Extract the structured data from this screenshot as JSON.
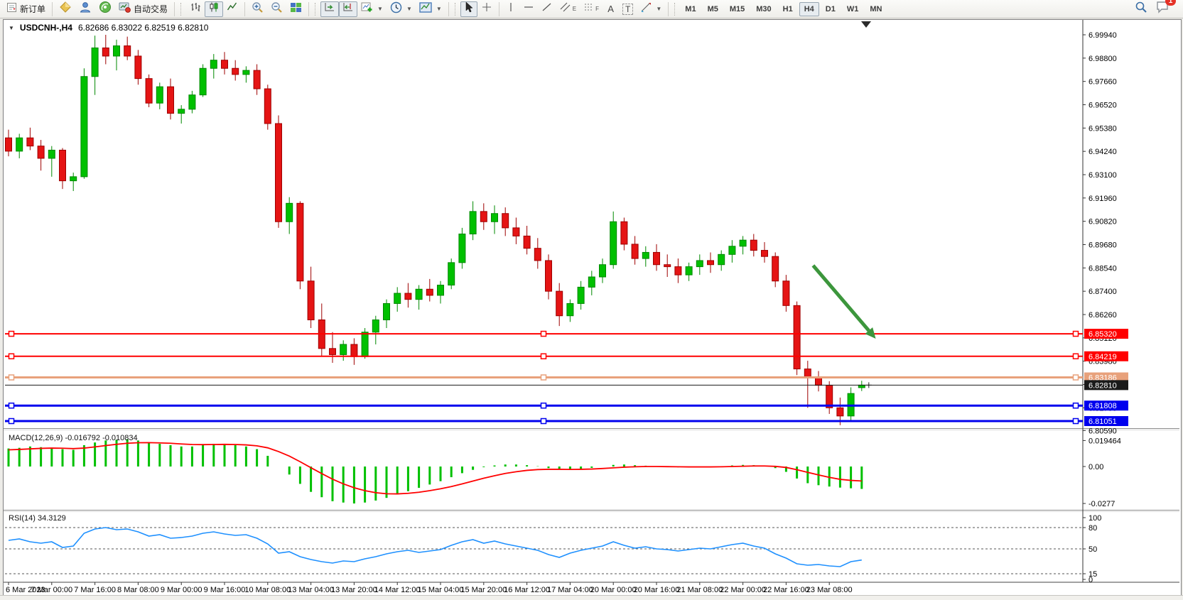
{
  "toolbar": {
    "new_order_label": "新订单",
    "autotrading_label": "自动交易",
    "timeframes": [
      "M1",
      "M5",
      "M15",
      "M30",
      "H1",
      "H4",
      "D1",
      "W1",
      "MN"
    ],
    "active_timeframe": "H4",
    "notification_badge": "1"
  },
  "icons": {
    "collapse": "▼",
    "dropdown": "▼",
    "crosshair": "+",
    "vertical_line": "|",
    "horizontal_line": "—",
    "trendline": "/",
    "channel_sub": "E",
    "fibo_sub": "F",
    "text_tool": "A",
    "label_tool": "T"
  },
  "chart": {
    "symbol_period": "USDCNH-,H4",
    "ohlc_text": "6.82686 6.83022 6.82519 6.82810",
    "macd_label": "MACD(12,26,9) -0.016792 -0.010834",
    "rsi_label": "RSI(14) 34.3129"
  },
  "axes": {
    "price_ticks": [
      "6.99940",
      "6.98800",
      "6.97660",
      "6.96520",
      "6.95380",
      "6.94240",
      "6.93100",
      "6.91960",
      "6.90820",
      "6.89680",
      "6.88540",
      "6.87400",
      "6.86260",
      "6.85120",
      "6.83980",
      "6.82840",
      "6.81700",
      "6.80590"
    ],
    "macd_ticks": [
      "0.019464",
      "0.00",
      "-0.0277"
    ],
    "rsi_ticks": [
      "100",
      "80",
      "50",
      "15",
      "0"
    ],
    "rsi_levels": [
      80,
      50,
      15
    ],
    "time_labels": [
      "6 Mar 2023",
      "7 Mar 00:00",
      "7 Mar 16:00",
      "8 Mar 08:00",
      "9 Mar 00:00",
      "9 Mar 16:00",
      "10 Mar 08:00",
      "13 Mar 04:00",
      "13 Mar 20:00",
      "14 Mar 12:00",
      "15 Mar 04:00",
      "15 Mar 20:00",
      "16 Mar 12:00",
      "17 Mar 04:00",
      "20 Mar 00:00",
      "20 Mar 16:00",
      "21 Mar 08:00",
      "22 Mar 00:00",
      "22 Mar 16:00",
      "23 Mar 08:00"
    ],
    "label_every_n_candles": 4
  },
  "levels": [
    {
      "price": 6.8532,
      "label": "6.85320",
      "color": "#FF0000",
      "line_width": 2,
      "selected": true
    },
    {
      "price": 6.84219,
      "label": "6.84219",
      "color": "#FF0000",
      "line_width": 2,
      "selected": true
    },
    {
      "price": 6.83186,
      "label": "6.83186",
      "color": "#E8A17B",
      "line_width": 3,
      "selected": true
    },
    {
      "price": 6.8281,
      "label": "6.82810",
      "color": "#1A1A1A",
      "line_width": 1,
      "selected": false
    },
    {
      "price": 6.81808,
      "label": "6.81808",
      "color": "#0000EE",
      "line_width": 3,
      "selected": true
    },
    {
      "price": 6.81051,
      "label": "6.81051",
      "color": "#0000EE",
      "line_width": 3,
      "selected": true
    }
  ],
  "colors": {
    "candle_up": "#00C000",
    "candle_up_border": "#008800",
    "candle_down": "#E51414",
    "candle_down_border": "#9E0000",
    "macd_bar": "#00C000",
    "macd_signal": "#FF0000",
    "rsi_line": "#1E90FF",
    "arrow": "#3C963C"
  },
  "chart_data": {
    "type": "candlestick",
    "symbol": "USDCNH-",
    "timeframe": "H4",
    "last_ohlc": {
      "open": "6.82686",
      "high": "6.83022",
      "low": "6.82519",
      "close": "6.82810"
    },
    "candles": [
      [
        6.949,
        6.953,
        6.94,
        6.9425
      ],
      [
        6.9425,
        6.951,
        6.939,
        6.949
      ],
      [
        6.949,
        6.954,
        6.943,
        6.945
      ],
      [
        6.945,
        6.948,
        6.933,
        6.939
      ],
      [
        6.939,
        6.945,
        6.93,
        6.943
      ],
      [
        6.943,
        6.944,
        6.924,
        6.928
      ],
      [
        6.928,
        6.932,
        6.923,
        6.93
      ],
      [
        6.93,
        6.983,
        6.929,
        6.979
      ],
      [
        6.979,
        6.999,
        6.97,
        6.993
      ],
      [
        6.993,
        6.9994,
        6.985,
        6.989
      ],
      [
        6.989,
        6.997,
        6.982,
        6.994
      ],
      [
        6.994,
        6.9985,
        6.987,
        6.989
      ],
      [
        6.989,
        6.992,
        6.975,
        6.978
      ],
      [
        6.978,
        6.98,
        6.964,
        6.966
      ],
      [
        6.966,
        6.976,
        6.963,
        6.974
      ],
      [
        6.974,
        6.978,
        6.958,
        6.961
      ],
      [
        6.961,
        6.965,
        6.956,
        6.963
      ],
      [
        6.963,
        6.972,
        6.961,
        6.97
      ],
      [
        6.97,
        6.985,
        6.969,
        6.983
      ],
      [
        6.983,
        6.99,
        6.978,
        6.987
      ],
      [
        6.987,
        6.991,
        6.98,
        6.983
      ],
      [
        6.983,
        6.987,
        6.977,
        6.98
      ],
      [
        6.98,
        6.984,
        6.976,
        6.982
      ],
      [
        6.982,
        6.985,
        6.97,
        6.973
      ],
      [
        6.973,
        6.975,
        6.953,
        6.956
      ],
      [
        6.956,
        6.96,
        6.905,
        6.908
      ],
      [
        6.908,
        6.92,
        6.902,
        6.917
      ],
      [
        6.917,
        6.918,
        6.875,
        6.879
      ],
      [
        6.879,
        6.886,
        6.856,
        6.86
      ],
      [
        6.86,
        6.868,
        6.842,
        6.846
      ],
      [
        6.846,
        6.854,
        6.839,
        6.843
      ],
      [
        6.843,
        6.85,
        6.84,
        6.848
      ],
      [
        6.848,
        6.851,
        6.838,
        6.842
      ],
      [
        6.842,
        6.856,
        6.841,
        6.854
      ],
      [
        6.854,
        6.862,
        6.848,
        6.86
      ],
      [
        6.86,
        6.87,
        6.856,
        6.868
      ],
      [
        6.868,
        6.876,
        6.864,
        6.873
      ],
      [
        6.873,
        6.878,
        6.866,
        6.87
      ],
      [
        6.87,
        6.877,
        6.865,
        6.875
      ],
      [
        6.875,
        6.88,
        6.869,
        6.872
      ],
      [
        6.872,
        6.879,
        6.868,
        6.877
      ],
      [
        6.877,
        6.89,
        6.875,
        6.888
      ],
      [
        6.888,
        6.905,
        6.885,
        6.902
      ],
      [
        6.902,
        6.918,
        6.899,
        6.913
      ],
      [
        6.913,
        6.917,
        6.904,
        6.908
      ],
      [
        6.908,
        6.916,
        6.902,
        6.912
      ],
      [
        6.912,
        6.915,
        6.901,
        6.905
      ],
      [
        6.905,
        6.91,
        6.897,
        6.901
      ],
      [
        6.901,
        6.906,
        6.892,
        6.895
      ],
      [
        6.895,
        6.9,
        6.885,
        6.889
      ],
      [
        6.889,
        6.892,
        6.87,
        6.874
      ],
      [
        6.874,
        6.878,
        6.857,
        6.862
      ],
      [
        6.862,
        6.87,
        6.859,
        6.868
      ],
      [
        6.868,
        6.879,
        6.865,
        6.876
      ],
      [
        6.876,
        6.884,
        6.872,
        6.881
      ],
      [
        6.881,
        6.89,
        6.878,
        6.887
      ],
      [
        6.887,
        6.913,
        6.885,
        6.908
      ],
      [
        6.908,
        6.91,
        6.894,
        6.897
      ],
      [
        6.897,
        6.901,
        6.887,
        6.89
      ],
      [
        6.89,
        6.896,
        6.886,
        6.893
      ],
      [
        6.893,
        6.897,
        6.884,
        6.887
      ],
      [
        6.887,
        6.892,
        6.881,
        6.886
      ],
      [
        6.886,
        6.89,
        6.878,
        6.882
      ],
      [
        6.882,
        6.888,
        6.879,
        6.886
      ],
      [
        6.886,
        6.892,
        6.882,
        6.889
      ],
      [
        6.889,
        6.893,
        6.883,
        6.887
      ],
      [
        6.887,
        6.894,
        6.884,
        6.892
      ],
      [
        6.892,
        6.899,
        6.888,
        6.896
      ],
      [
        6.896,
        6.901,
        6.892,
        6.899
      ],
      [
        6.899,
        6.902,
        6.891,
        6.894
      ],
      [
        6.894,
        6.898,
        6.888,
        6.891
      ],
      [
        6.891,
        6.893,
        6.876,
        6.879
      ],
      [
        6.879,
        6.882,
        6.864,
        6.867
      ],
      [
        6.867,
        6.869,
        6.833,
        6.836
      ],
      [
        6.836,
        6.84,
        6.817,
        6.832
      ],
      [
        6.832,
        6.835,
        6.825,
        6.828
      ],
      [
        6.828,
        6.83,
        6.814,
        6.817
      ],
      [
        6.817,
        6.822,
        6.8085,
        6.813
      ],
      [
        6.813,
        6.827,
        6.8105,
        6.824
      ],
      [
        6.82686,
        6.83022,
        6.82519,
        6.8281
      ]
    ],
    "macd": {
      "name": "MACD(12,26,9)",
      "current_main": "-0.016792",
      "current_signal": "-0.010834",
      "histogram": [
        0.0135,
        0.014,
        0.015,
        0.0145,
        0.014,
        0.013,
        0.0125,
        0.016,
        0.018,
        0.0195,
        0.02,
        0.0205,
        0.0195,
        0.018,
        0.017,
        0.016,
        0.015,
        0.015,
        0.016,
        0.017,
        0.017,
        0.016,
        0.015,
        0.013,
        0.008,
        0.0,
        -0.006,
        -0.013,
        -0.019,
        -0.023,
        -0.026,
        -0.027,
        -0.0277,
        -0.027,
        -0.0255,
        -0.0235,
        -0.021,
        -0.0185,
        -0.016,
        -0.0135,
        -0.011,
        -0.008,
        -0.005,
        -0.0025,
        -0.0005,
        0.0008,
        0.0015,
        0.0015,
        0.001,
        0.0002,
        -0.0012,
        -0.0022,
        -0.0024,
        -0.0018,
        -0.001,
        0.0,
        0.0012,
        0.0015,
        0.001,
        0.0006,
        0.0002,
        -0.0002,
        -0.0006,
        -0.0006,
        -0.0004,
        -0.0002,
        0.0002,
        0.0008,
        0.0012,
        0.001,
        0.0004,
        -0.0012,
        -0.004,
        -0.009,
        -0.0125,
        -0.014,
        -0.015,
        -0.0158,
        -0.0163,
        -0.016792
      ],
      "signal": [
        0.0125,
        0.0128,
        0.0132,
        0.0136,
        0.0138,
        0.0137,
        0.0134,
        0.0138,
        0.0147,
        0.0157,
        0.0166,
        0.0174,
        0.0178,
        0.0179,
        0.0177,
        0.0174,
        0.0169,
        0.0165,
        0.0164,
        0.0165,
        0.0166,
        0.0165,
        0.0162,
        0.0155,
        0.014,
        0.0112,
        0.0078,
        0.0036,
        -0.0009,
        -0.0053,
        -0.0095,
        -0.013,
        -0.0159,
        -0.0181,
        -0.0196,
        -0.0204,
        -0.0205,
        -0.0201,
        -0.0193,
        -0.0181,
        -0.0167,
        -0.015,
        -0.013,
        -0.0109,
        -0.0088,
        -0.0069,
        -0.0052,
        -0.0039,
        -0.0029,
        -0.0023,
        -0.0021,
        -0.0021,
        -0.0022,
        -0.0021,
        -0.0019,
        -0.0015,
        -0.001,
        -0.0005,
        -0.0002,
        0.0,
        0.0,
        -0.0001,
        -0.0002,
        -0.0003,
        -0.0003,
        -0.0003,
        -0.0002,
        0.0,
        0.0002,
        0.0004,
        0.0004,
        0.0001,
        -0.0007,
        -0.0024,
        -0.0044,
        -0.0063,
        -0.0081,
        -0.0096,
        -0.0104,
        -0.010834
      ]
    },
    "rsi": {
      "name": "RSI(14)",
      "current": "34.3129",
      "values": [
        62,
        64,
        60,
        58,
        60,
        52,
        54,
        72,
        78,
        80,
        77,
        78,
        74,
        68,
        70,
        65,
        66,
        68,
        72,
        74,
        71,
        69,
        70,
        65,
        57,
        44,
        46,
        39,
        35,
        32,
        30,
        33,
        32,
        36,
        39,
        43,
        46,
        48,
        45,
        47,
        49,
        55,
        60,
        63,
        58,
        61,
        57,
        54,
        51,
        48,
        42,
        38,
        44,
        48,
        51,
        54,
        60,
        55,
        51,
        53,
        50,
        49,
        47,
        49,
        51,
        50,
        53,
        56,
        58,
        54,
        51,
        43,
        37,
        29,
        27,
        28,
        26,
        25,
        32,
        34.3
      ]
    },
    "annotations": [
      {
        "type": "arrow",
        "from_candle": 74.5,
        "from_price": 6.8866,
        "to_candle": 80.3,
        "to_price": 6.8508
      }
    ]
  }
}
